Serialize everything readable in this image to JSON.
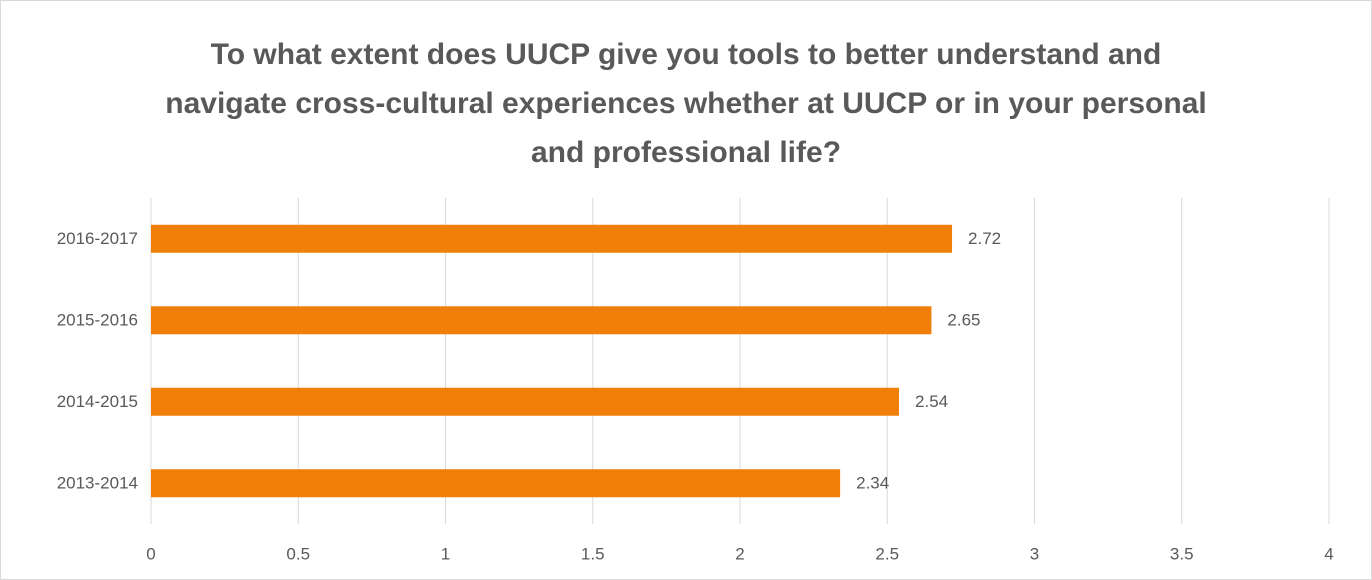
{
  "chart_data": {
    "type": "bar",
    "orientation": "horizontal",
    "title": "To what extent does UUCP give you tools to better understand and navigate cross-cultural experiences whether at UUCP or in your personal and professional life?",
    "categories": [
      "2016-2017",
      "2015-2016",
      "2014-2015",
      "2013-2014"
    ],
    "values": [
      2.72,
      2.65,
      2.54,
      2.34
    ],
    "color": "#f07f09",
    "xlim": [
      0,
      4
    ],
    "xticks": [
      0,
      0.5,
      1,
      1.5,
      2,
      2.5,
      3,
      3.5,
      4
    ],
    "grid": true
  }
}
